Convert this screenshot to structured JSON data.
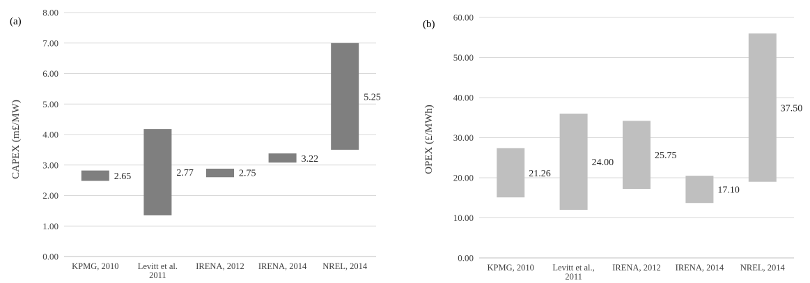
{
  "chart_data": [
    {
      "panel_label": "(a)",
      "type": "bar",
      "subtype": "floating range bar (min to max) with value label",
      "categories": [
        [
          "KPMG, 2010"
        ],
        [
          "Levitt et al.",
          "2011"
        ],
        [
          "IRENA, 2012"
        ],
        [
          "IRENA, 2014"
        ],
        [
          "NREL, 2014"
        ]
      ],
      "ranges": [
        [
          2.48,
          2.82
        ],
        [
          1.35,
          4.18
        ],
        [
          2.6,
          2.88
        ],
        [
          3.08,
          3.38
        ],
        [
          3.5,
          7.0
        ]
      ],
      "values": [
        2.65,
        2.77,
        2.75,
        3.22,
        5.25
      ],
      "value_labels": [
        "2.65",
        "2.77",
        "2.75",
        "3.22",
        "5.25"
      ],
      "ylabel": "CAPEX (m£/MW)",
      "xlabel": "",
      "title": "",
      "ylim": [
        0,
        8
      ],
      "yticks": [
        "0.00",
        "1.00",
        "2.00",
        "3.00",
        "4.00",
        "5.00",
        "6.00",
        "7.00",
        "8.00"
      ],
      "grid": "horizontal",
      "legend": "none",
      "color": "#7f7f7f"
    },
    {
      "panel_label": "(b)",
      "type": "bar",
      "subtype": "floating range bar (min to max) with value label",
      "categories": [
        [
          "KPMG, 2010"
        ],
        [
          "Levitt et al.,",
          "2011"
        ],
        [
          "IRENA, 2012"
        ],
        [
          "IRENA, 2014"
        ],
        [
          "NREL, 2014"
        ]
      ],
      "ranges": [
        [
          15.1,
          27.4
        ],
        [
          12.0,
          36.0
        ],
        [
          17.2,
          34.2
        ],
        [
          13.7,
          20.5
        ],
        [
          19.0,
          56.0
        ]
      ],
      "values": [
        21.26,
        24.0,
        25.75,
        17.1,
        37.5
      ],
      "value_labels": [
        "21.26",
        "24.00",
        "25.75",
        "17.10",
        "37.50"
      ],
      "ylabel": "OPEX (£/MWh)",
      "xlabel": "",
      "title": "",
      "ylim": [
        0,
        60
      ],
      "yticks": [
        "0.00",
        "10.00",
        "20.00",
        "30.00",
        "40.00",
        "50.00",
        "60.00"
      ],
      "grid": "horizontal",
      "legend": "none",
      "color": "#bfbfbf"
    }
  ]
}
